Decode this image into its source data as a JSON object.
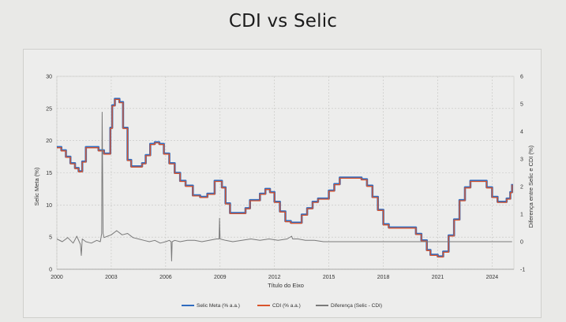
{
  "title": "CDI vs Selic",
  "chart_data": {
    "type": "line",
    "title": "CDI vs Selic",
    "xlabel": "Título do Eixo",
    "ylabel": "Selic Meta (%)",
    "y2label": "Diferença entre Selic e CDI (%)",
    "xlim": [
      2000,
      2025.2
    ],
    "ylim": [
      0,
      30
    ],
    "y2lim": [
      -1,
      6
    ],
    "x_ticks": [
      "2000",
      "2003",
      "2006",
      "2009",
      "2012",
      "2015",
      "2018",
      "2021",
      "2024"
    ],
    "y_ticks": [
      "0",
      "5",
      "10",
      "15",
      "20",
      "25",
      "30"
    ],
    "y2_ticks": [
      "-1",
      "0",
      "1",
      "2",
      "3",
      "4",
      "5",
      "6"
    ],
    "grid": true,
    "legend_position": "bottom",
    "series": [
      {
        "name": "Selic Meta (% a.a.)",
        "color": "#2f6bbf",
        "axis": "left",
        "x": [
          2000.0,
          2000.25,
          2000.5,
          2000.75,
          2001.0,
          2001.2,
          2001.4,
          2001.6,
          2001.9,
          2002.3,
          2002.6,
          2002.8,
          2002.95,
          2003.05,
          2003.2,
          2003.45,
          2003.65,
          2003.9,
          2004.1,
          2004.4,
          2004.7,
          2004.9,
          2005.15,
          2005.4,
          2005.65,
          2005.9,
          2006.2,
          2006.5,
          2006.8,
          2007.1,
          2007.5,
          2007.9,
          2008.3,
          2008.7,
          2008.95,
          2009.1,
          2009.3,
          2009.55,
          2009.8,
          2010.1,
          2010.4,
          2010.65,
          2010.9,
          2011.2,
          2011.5,
          2011.75,
          2012.0,
          2012.3,
          2012.6,
          2012.9,
          2013.2,
          2013.5,
          2013.8,
          2014.1,
          2014.4,
          2014.7,
          2015.0,
          2015.3,
          2015.6,
          2016.0,
          2016.5,
          2016.8,
          2017.1,
          2017.4,
          2017.7,
          2018.0,
          2018.3,
          2018.6,
          2019.0,
          2019.5,
          2019.8,
          2020.1,
          2020.4,
          2020.6,
          2021.0,
          2021.3,
          2021.6,
          2021.9,
          2022.2,
          2022.5,
          2022.8,
          2023.1,
          2023.4,
          2023.7,
          2024.0,
          2024.3,
          2024.6,
          2024.8,
          2025.0,
          2025.1
        ],
        "y": [
          19.0,
          18.5,
          17.5,
          16.5,
          15.75,
          15.25,
          16.75,
          19.0,
          19.0,
          18.5,
          18.0,
          18.0,
          22.0,
          25.5,
          26.5,
          26.0,
          22.0,
          17.0,
          16.0,
          16.0,
          16.5,
          17.75,
          19.5,
          19.75,
          19.5,
          18.0,
          16.5,
          15.0,
          13.75,
          13.0,
          11.5,
          11.25,
          11.75,
          13.75,
          13.75,
          12.75,
          10.25,
          8.75,
          8.75,
          8.75,
          9.5,
          10.75,
          10.75,
          11.75,
          12.5,
          12.0,
          10.5,
          9.0,
          7.5,
          7.25,
          7.25,
          8.5,
          9.5,
          10.5,
          11.0,
          11.0,
          12.25,
          13.25,
          14.25,
          14.25,
          14.25,
          14.0,
          13.0,
          11.25,
          9.25,
          7.0,
          6.5,
          6.5,
          6.5,
          6.5,
          5.5,
          4.5,
          3.0,
          2.25,
          2.0,
          2.75,
          5.25,
          7.75,
          10.75,
          12.75,
          13.75,
          13.75,
          13.75,
          12.75,
          11.25,
          10.5,
          10.5,
          11.0,
          12.0,
          13.25
        ]
      },
      {
        "name": "CDI (% a.a.)",
        "color": "#d9542c",
        "axis": "left",
        "x": [
          2000.0,
          2000.25,
          2000.5,
          2000.75,
          2001.0,
          2001.2,
          2001.4,
          2001.6,
          2001.9,
          2002.3,
          2002.6,
          2002.8,
          2002.95,
          2003.05,
          2003.2,
          2003.45,
          2003.65,
          2003.9,
          2004.1,
          2004.4,
          2004.7,
          2004.9,
          2005.15,
          2005.4,
          2005.65,
          2005.9,
          2006.2,
          2006.5,
          2006.8,
          2007.1,
          2007.5,
          2007.9,
          2008.3,
          2008.7,
          2008.95,
          2009.1,
          2009.3,
          2009.55,
          2009.8,
          2010.1,
          2010.4,
          2010.65,
          2010.9,
          2011.2,
          2011.5,
          2011.75,
          2012.0,
          2012.3,
          2012.6,
          2012.9,
          2013.2,
          2013.5,
          2013.8,
          2014.1,
          2014.4,
          2014.7,
          2015.0,
          2015.3,
          2015.6,
          2016.0,
          2016.5,
          2016.8,
          2017.1,
          2017.4,
          2017.7,
          2018.0,
          2018.3,
          2018.6,
          2019.0,
          2019.5,
          2019.8,
          2020.1,
          2020.4,
          2020.6,
          2021.0,
          2021.3,
          2021.6,
          2021.9,
          2022.2,
          2022.5,
          2022.8,
          2023.1,
          2023.4,
          2023.7,
          2024.0,
          2024.3,
          2024.6,
          2024.8,
          2025.0,
          2025.1
        ],
        "y": [
          18.9,
          18.4,
          17.4,
          16.4,
          15.65,
          15.15,
          16.65,
          18.9,
          18.9,
          18.4,
          17.9,
          17.9,
          21.9,
          25.4,
          26.4,
          25.9,
          21.9,
          16.9,
          15.9,
          15.9,
          16.4,
          17.65,
          19.4,
          19.65,
          19.4,
          17.9,
          16.4,
          14.9,
          13.65,
          12.9,
          11.4,
          11.15,
          11.65,
          13.65,
          13.65,
          12.65,
          10.15,
          8.65,
          8.65,
          8.65,
          9.4,
          10.65,
          10.65,
          11.65,
          12.4,
          11.9,
          10.4,
          8.9,
          7.4,
          7.15,
          7.15,
          8.4,
          9.4,
          10.4,
          10.9,
          10.9,
          12.15,
          13.15,
          14.15,
          14.15,
          14.15,
          13.9,
          12.9,
          11.15,
          9.15,
          6.9,
          6.4,
          6.4,
          6.4,
          6.4,
          5.4,
          4.4,
          2.9,
          2.15,
          1.9,
          2.65,
          5.15,
          7.65,
          10.65,
          12.65,
          13.65,
          13.65,
          13.65,
          12.65,
          11.15,
          10.4,
          10.4,
          10.9,
          11.9,
          13.15
        ]
      },
      {
        "name": "Diferença (Selic - CDI)",
        "color": "#7a7a7a",
        "axis": "right",
        "x": [
          2000.0,
          2000.3,
          2000.6,
          2000.9,
          2001.1,
          2001.3,
          2001.35,
          2001.4,
          2001.6,
          2001.9,
          2002.2,
          2002.4,
          2002.47,
          2002.5,
          2002.55,
          2002.6,
          2002.8,
          2003.0,
          2003.3,
          2003.6,
          2003.9,
          2004.2,
          2004.5,
          2004.8,
          2005.1,
          2005.4,
          2005.7,
          2006.0,
          2006.2,
          2006.3,
          2006.33,
          2006.36,
          2006.5,
          2006.8,
          2007.2,
          2007.6,
          2008.0,
          2008.4,
          2008.8,
          2008.95,
          2008.97,
          2009.0,
          2009.3,
          2009.7,
          2010.2,
          2010.7,
          2011.2,
          2011.7,
          2012.2,
          2012.7,
          2012.95,
          2013.0,
          2013.3,
          2013.7,
          2014.2,
          2014.7,
          2015.2,
          2016.0,
          2018.0,
          2020.0,
          2022.0,
          2024.0,
          2025.1
        ],
        "y": [
          0.1,
          0.0,
          0.15,
          -0.05,
          0.2,
          -0.1,
          -0.5,
          0.1,
          0.0,
          -0.05,
          0.05,
          0.0,
          0.3,
          4.7,
          0.3,
          0.15,
          0.2,
          0.25,
          0.4,
          0.25,
          0.3,
          0.15,
          0.1,
          0.05,
          0.0,
          0.05,
          -0.05,
          0.0,
          0.05,
          0.0,
          -0.7,
          0.0,
          0.05,
          0.0,
          0.05,
          0.05,
          0.0,
          0.05,
          0.1,
          0.1,
          0.85,
          0.1,
          0.05,
          0.0,
          0.05,
          0.1,
          0.05,
          0.1,
          0.05,
          0.1,
          0.2,
          0.1,
          0.1,
          0.05,
          0.05,
          0.0,
          0.0,
          0.0,
          0.0,
          0.0,
          0.0,
          0.0,
          0.0
        ]
      }
    ]
  }
}
